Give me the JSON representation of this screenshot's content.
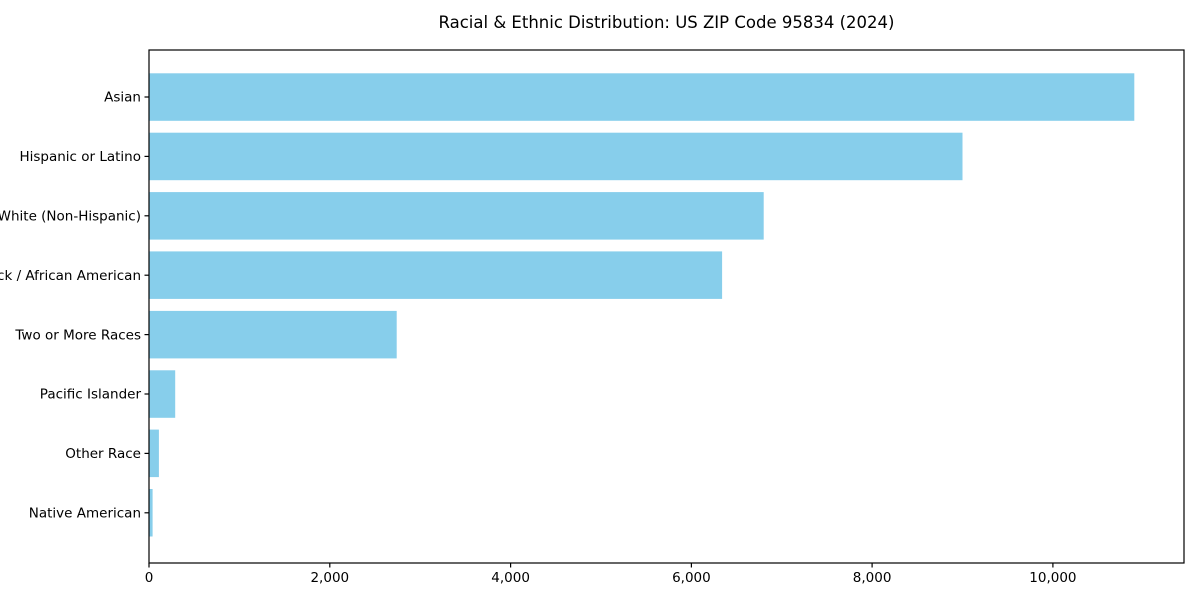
{
  "chart_data": {
    "type": "bar",
    "orientation": "horizontal",
    "title": "Racial & Ethnic Distribution: US ZIP Code 95834 (2024)",
    "categories": [
      "Asian",
      "Hispanic or Latino",
      "White (Non-Hispanic)",
      "Black / African American",
      "Two or More Races",
      "Pacific Islander",
      "Other Race",
      "Native American"
    ],
    "values": [
      10900,
      9000,
      6800,
      6340,
      2740,
      290,
      110,
      40
    ],
    "xlabel": "",
    "ylabel": "",
    "xlim": [
      0,
      11450
    ],
    "x_ticks": [
      0,
      2000,
      4000,
      6000,
      8000,
      10000
    ],
    "x_tick_labels": [
      "0",
      "2,000",
      "4,000",
      "6,000",
      "8,000",
      "10,000"
    ],
    "grid": false,
    "legend_position": "none",
    "bar_color": "#87CEEB",
    "frame_color": "#000000",
    "text_color": "#000000",
    "background_color": "#ffffff"
  }
}
